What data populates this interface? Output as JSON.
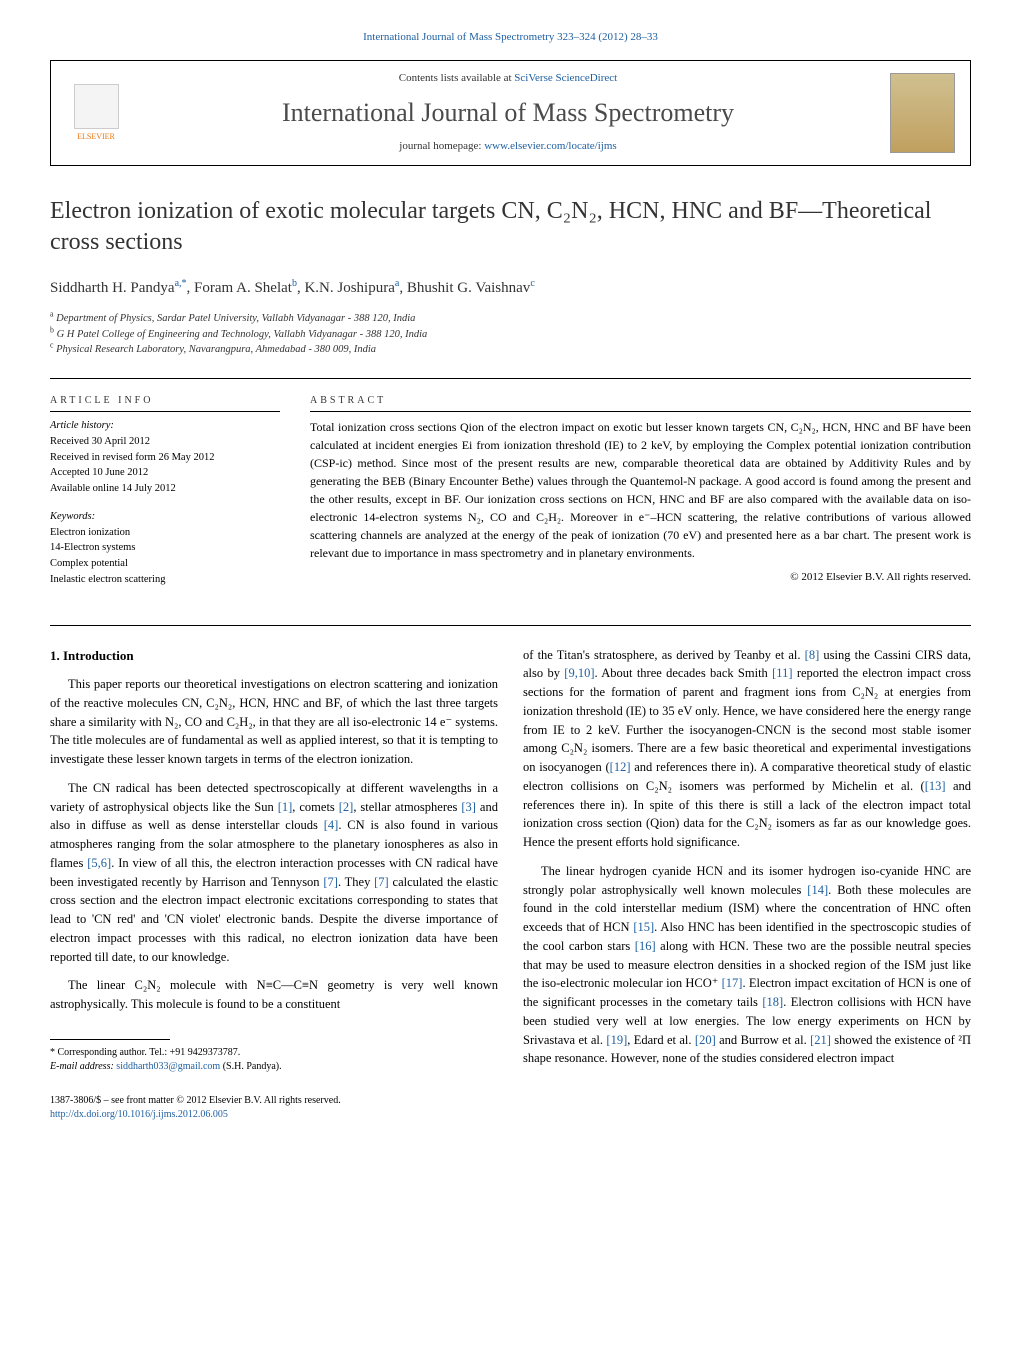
{
  "top_link": "International Journal of Mass Spectrometry 323–324 (2012) 28–33",
  "header": {
    "contents_prefix": "Contents lists available at ",
    "contents_link": "SciVerse ScienceDirect",
    "journal_name": "International Journal of Mass Spectrometry",
    "homepage_prefix": "journal homepage: ",
    "homepage_url": "www.elsevier.com/locate/ijms",
    "publisher": "ELSEVIER"
  },
  "title": "Electron ionization of exotic molecular targets CN, C₂N₂, HCN, HNC and BF—Theoretical cross sections",
  "authors_html": "Siddharth H. Pandya|a,*|, Foram A. Shelat|b|, K.N. Joshipura|a|, Bhushit G. Vaishnav|c|",
  "affiliations": {
    "a": "Department of Physics, Sardar Patel University, Vallabh Vidyanagar - 388 120, India",
    "b": "G H Patel College of Engineering and Technology, Vallabh Vidyanagar - 388 120, India",
    "c": "Physical Research Laboratory, Navarangpura, Ahmedabad - 380 009, India"
  },
  "article_info": {
    "heading": "ARTICLE INFO",
    "history_label": "Article history:",
    "history": [
      "Received 30 April 2012",
      "Received in revised form 26 May 2012",
      "Accepted 10 June 2012",
      "Available online 14 July 2012"
    ],
    "keywords_label": "Keywords:",
    "keywords": [
      "Electron ionization",
      "14-Electron systems",
      "Complex potential",
      "Inelastic electron scattering"
    ]
  },
  "abstract": {
    "heading": "ABSTRACT",
    "text": "Total ionization cross sections Qion of the electron impact on exotic but lesser known targets CN, C₂N₂, HCN, HNC and BF have been calculated at incident energies Ei from ionization threshold (IE) to 2 keV, by employing the Complex potential ionization contribution (CSP-ic) method. Since most of the present results are new, comparable theoretical data are obtained by Additivity Rules and by generating the BEB (Binary Encounter Bethe) values through the Quantemol-N package. A good accord is found among the present and the other results, except in BF. Our ionization cross sections on HCN, HNC and BF are also compared with the available data on iso-electronic 14-electron systems N₂, CO and C₂H₂. Moreover in e⁻–HCN scattering, the relative contributions of various allowed scattering channels are analyzed at the energy of the peak of ionization (70 eV) and presented here as a bar chart. The present work is relevant due to importance in mass spectrometry and in planetary environments.",
    "copyright": "© 2012 Elsevier B.V. All rights reserved."
  },
  "body": {
    "section_num": "1.",
    "section_title": "Introduction",
    "left_paras": [
      "This paper reports our theoretical investigations on electron scattering and ionization of the reactive molecules CN, C₂N₂, HCN, HNC and BF, of which the last three targets share a similarity with N₂, CO and C₂H₂, in that they are all iso-electronic 14 e⁻ systems. The title molecules are of fundamental as well as applied interest, so that it is tempting to investigate these lesser known targets in terms of the electron ionization.",
      "The CN radical has been detected spectroscopically at different wavelengths in a variety of astrophysical objects like the Sun [1], comets [2], stellar atmospheres [3] and also in diffuse as well as dense interstellar clouds [4]. CN is also found in various atmospheres ranging from the solar atmosphere to the planetary ionospheres as also in flames [5,6]. In view of all this, the electron interaction processes with CN radical have been investigated recently by Harrison and Tennyson [7]. They [7] calculated the elastic cross section and the electron impact electronic excitations corresponding to states that lead to 'CN red' and 'CN violet' electronic bands. Despite the diverse importance of electron impact processes with this radical, no electron ionization data have been reported till date, to our knowledge.",
      "The linear C₂N₂ molecule with N≡C—C≡N geometry is very well known astrophysically. This molecule is found to be a constituent"
    ],
    "right_paras": [
      "of the Titan's stratosphere, as derived by Teanby et al. [8] using the Cassini CIRS data, also by [9,10]. About three decades back Smith [11] reported the electron impact cross sections for the formation of parent and fragment ions from C₂N₂ at energies from ionization threshold (IE) to 35 eV only. Hence, we have considered here the energy range from IE to 2 keV. Further the isocyanogen-CNCN is the second most stable isomer among C₂N₂ isomers. There are a few basic theoretical and experimental investigations on isocyanogen ([12] and references there in). A comparative theoretical study of elastic electron collisions on C₂N₂ isomers was performed by Michelin et al. ([13] and references there in). In spite of this there is still a lack of the electron impact total ionization cross section (Qion) data for the C₂N₂ isomers as far as our knowledge goes. Hence the present efforts hold significance.",
      "The linear hydrogen cyanide HCN and its isomer hydrogen iso-cyanide HNC are strongly polar astrophysically well known molecules [14]. Both these molecules are found in the cold interstellar medium (ISM) where the concentration of HNC often exceeds that of HCN [15]. Also HNC has been identified in the spectroscopic studies of the cool carbon stars [16] along with HCN. These two are the possible neutral species that may be used to measure electron densities in a shocked region of the ISM just like the iso-electronic molecular ion HCO⁺ [17]. Electron impact excitation of HCN is one of the significant processes in the cometary tails [18]. Electron collisions with HCN have been studied very well at low energies. The low energy experiments on HCN by Srivastava et al. [19], Edard et al. [20] and Burrow et al. [21] showed the existence of ²Π shape resonance. However, none of the studies considered electron impact"
    ]
  },
  "footnote": {
    "corr_label": "* Corresponding author. Tel.: +91 9429373787.",
    "email_label": "E-mail address:",
    "email": "siddharth033@gmail.com",
    "email_suffix": "(S.H. Pandya)."
  },
  "bottom": {
    "issn": "1387-3806/$ – see front matter © 2012 Elsevier B.V. All rights reserved.",
    "doi": "http://dx.doi.org/10.1016/j.ijms.2012.06.005"
  },
  "colors": {
    "link": "#2060a0",
    "text": "#000000",
    "heading": "#333333",
    "elsevier_orange": "#e67817"
  }
}
